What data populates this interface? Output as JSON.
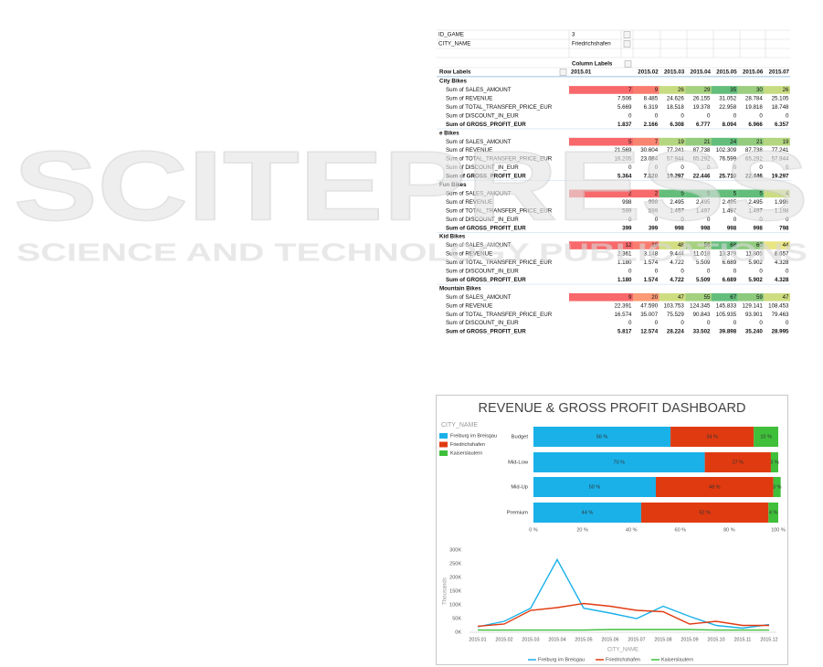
{
  "watermark": {
    "title": "SCITEPRESS",
    "subtitle": "SCIENCE AND TECHNOLOGY PUBLICATIONS"
  },
  "pivot": {
    "filters": [
      [
        "ID_GAME",
        "3"
      ],
      [
        "CITY_NAME",
        "Friedrichshafen"
      ]
    ],
    "column_labels": "Column Labels",
    "row_labels": "Row Labels",
    "columns": [
      "2015.01",
      "2015.02",
      "2015.03",
      "2015.04",
      "2015.05",
      "2015.06",
      "2015.07"
    ],
    "groups": [
      {
        "name": "City Bikes",
        "rows": [
          {
            "label": "Sum of SALES_AMOUNT",
            "values": [
              "7",
              "9",
              "26",
              "29",
              "35",
              "30",
              "26"
            ]
          },
          {
            "label": "Sum of REVENUE",
            "values": [
              "7.506",
              "8.485",
              "24.626",
              "26.155",
              "31.052",
              "28.784",
              "25.105"
            ]
          },
          {
            "label": "Sum of TOTAL_TRANSFER_PRICE_EUR",
            "values": [
              "5.669",
              "6.319",
              "18.518",
              "19.378",
              "22.958",
              "19.818",
              "18.748"
            ]
          },
          {
            "label": "Sum of DISCOUNT_IN_EUR",
            "values": [
              "0",
              "0",
              "0",
              "0",
              "0",
              "0",
              "0"
            ]
          },
          {
            "label": "Sum of GROSS_PROFIT_EUR",
            "values": [
              "1.837",
              "2.166",
              "6.308",
              "6.777",
              "8.094",
              "6.966",
              "6.357"
            ]
          }
        ]
      },
      {
        "name": "e Bikes",
        "rows": [
          {
            "label": "Sum of SALES_AMOUNT",
            "values": [
              "5",
              "7",
              "19",
              "21",
              "24",
              "21",
              "19"
            ]
          },
          {
            "label": "Sum of REVENUE",
            "values": [
              "21.569",
              "30.604",
              "77.241",
              "87.738",
              "102.309",
              "87.738",
              "77.241"
            ]
          },
          {
            "label": "Sum of TOTAL_TRANSFER_PRICE_EUR",
            "values": [
              "16.205",
              "23.084",
              "57.944",
              "65.292",
              "76.599",
              "65.292",
              "57.944"
            ]
          },
          {
            "label": "Sum of DISCOUNT_IN_EUR",
            "values": [
              "0",
              "0",
              "0",
              "0",
              "0",
              "0",
              "0"
            ]
          },
          {
            "label": "Sum of GROSS_PROFIT_EUR",
            "values": [
              "5.364",
              "7.520",
              "19.297",
              "22.446",
              "25.710",
              "22.446",
              "19.297"
            ]
          }
        ]
      },
      {
        "name": "Fun Bikes",
        "rows": [
          {
            "label": "Sum of SALES_AMOUNT",
            "values": [
              "2",
              "2",
              "5",
              "5",
              "5",
              "5",
              "4"
            ]
          },
          {
            "label": "Sum of REVENUE",
            "values": [
              "998",
              "998",
              "2.495",
              "2.495",
              "2.495",
              "2.495",
              "1.996"
            ]
          },
          {
            "label": "Sum of TOTAL_TRANSFER_PRICE_EUR",
            "values": [
              "599",
              "599",
              "1.497",
              "1.497",
              "1.497",
              "1.497",
              "1.198"
            ]
          },
          {
            "label": "Sum of DISCOUNT_IN_EUR",
            "values": [
              "0",
              "0",
              "0",
              "0",
              "0",
              "0",
              "0"
            ]
          },
          {
            "label": "Sum of GROSS_PROFIT_EUR",
            "values": [
              "399",
              "399",
              "998",
              "998",
              "998",
              "998",
              "798"
            ]
          }
        ]
      },
      {
        "name": "Kid Bikes",
        "rows": [
          {
            "label": "Sum of SALES_AMOUNT",
            "values": [
              "12",
              "16",
              "48",
              "56",
              "68",
              "60",
              "44"
            ]
          },
          {
            "label": "Sum of REVENUE",
            "values": [
              "2.361",
              "3.148",
              "9.444",
              "11.018",
              "13.379",
              "11.805",
              "8.657"
            ]
          },
          {
            "label": "Sum of TOTAL_TRANSFER_PRICE_EUR",
            "values": [
              "1.180",
              "1.574",
              "4.722",
              "5.509",
              "6.689",
              "5.902",
              "4.328"
            ]
          },
          {
            "label": "Sum of DISCOUNT_IN_EUR",
            "values": [
              "0",
              "0",
              "0",
              "0",
              "0",
              "0",
              "0"
            ]
          },
          {
            "label": "Sum of GROSS_PROFIT_EUR",
            "values": [
              "1.180",
              "1.574",
              "4.722",
              "5.509",
              "6.689",
              "5.902",
              "4.328"
            ]
          }
        ]
      },
      {
        "name": "Mountain Bikes",
        "rows": [
          {
            "label": "Sum of SALES_AMOUNT",
            "values": [
              "9",
              "20",
              "47",
              "55",
              "67",
              "59",
              "47"
            ]
          },
          {
            "label": "Sum of REVENUE",
            "values": [
              "22.391",
              "47.590",
              "103.753",
              "124.345",
              "145.833",
              "129.141",
              "108.453"
            ]
          },
          {
            "label": "Sum of TOTAL_TRANSFER_PRICE_EUR",
            "values": [
              "16.574",
              "35.007",
              "75.529",
              "90.843",
              "105.935",
              "93.901",
              "79.463"
            ]
          },
          {
            "label": "Sum of DISCOUNT_IN_EUR",
            "values": [
              "0",
              "0",
              "0",
              "0",
              "0",
              "0",
              "0"
            ]
          },
          {
            "label": "Sum of GROSS_PROFIT_EUR",
            "values": [
              "5.817",
              "12.574",
              "28.224",
              "33.502",
              "39.898",
              "35.240",
              "28.995"
            ]
          }
        ]
      }
    ]
  },
  "dashboard": {
    "title": "REVENUE & GROSS PROFIT DASHBOARD"
  },
  "chart_data": [
    {
      "type": "bar",
      "orientation": "horizontal",
      "stacked": true,
      "legend_title": "CITY_NAME",
      "legend": "top-left",
      "categories": [
        "Budget",
        "Mid-Low",
        "Mid-Up",
        "Premium"
      ],
      "series": [
        {
          "name": "Freiburg im Breisgau",
          "color": "#1ab1e9",
          "values": [
            56,
            70,
            50,
            44
          ],
          "value_labels": [
            "56 %",
            "70 %",
            "50 %",
            "44 %"
          ]
        },
        {
          "name": "Friedrichshafen",
          "color": "#e03a10",
          "values": [
            34,
            27,
            48,
            52
          ],
          "value_labels": [
            "34 %",
            "27 %",
            "48 %",
            "52 %"
          ]
        },
        {
          "name": "Kaiserslautern",
          "color": "#3fbf3a",
          "values": [
            10,
            3,
            3,
            4
          ],
          "value_labels": [
            "10 %",
            "3 %",
            "3 %",
            "4 %"
          ]
        }
      ],
      "xlim": [
        0,
        100
      ],
      "xticks": [
        {
          "value": 0,
          "label": "0 %"
        },
        {
          "value": 20,
          "label": "20 %"
        },
        {
          "value": 40,
          "label": "40 %"
        },
        {
          "value": 60,
          "label": "60 %"
        },
        {
          "value": 80,
          "label": "80 %"
        },
        {
          "value": 100,
          "label": "100 %"
        }
      ]
    },
    {
      "type": "line",
      "x_label": "CITY_NAME",
      "y_label": "Thousands",
      "legend": "bottom",
      "grid": false,
      "categories": [
        "2015.01",
        "2015.02",
        "2015.03",
        "2015.04",
        "2015.05",
        "2015.06",
        "2015.07",
        "2015.08",
        "2015.09",
        "2015.10",
        "2015.11",
        "2015.12"
      ],
      "series": [
        {
          "name": "Freiburg im Breisgau",
          "color": "#1ab1e9",
          "values": [
            20,
            40,
            88,
            265,
            88,
            70,
            50,
            95,
            58,
            25,
            15,
            28
          ]
        },
        {
          "name": "Friedrichshafen",
          "color": "#e03a10",
          "values": [
            22,
            30,
            80,
            90,
            105,
            95,
            80,
            75,
            30,
            40,
            25,
            25
          ]
        },
        {
          "name": "Kaiserslautern",
          "color": "#3fbf3a",
          "values": [
            8,
            8,
            8,
            8,
            8,
            10,
            10,
            10,
            10,
            8,
            8,
            8
          ]
        }
      ],
      "ylim": [
        0,
        300
      ],
      "yticks": [
        {
          "value": 0,
          "label": "0K"
        },
        {
          "value": 50,
          "label": "50K"
        },
        {
          "value": 100,
          "label": "100K"
        },
        {
          "value": 150,
          "label": "150K"
        },
        {
          "value": 200,
          "label": "200K"
        },
        {
          "value": 250,
          "label": "250K"
        },
        {
          "value": 300,
          "label": "300K"
        }
      ]
    }
  ]
}
